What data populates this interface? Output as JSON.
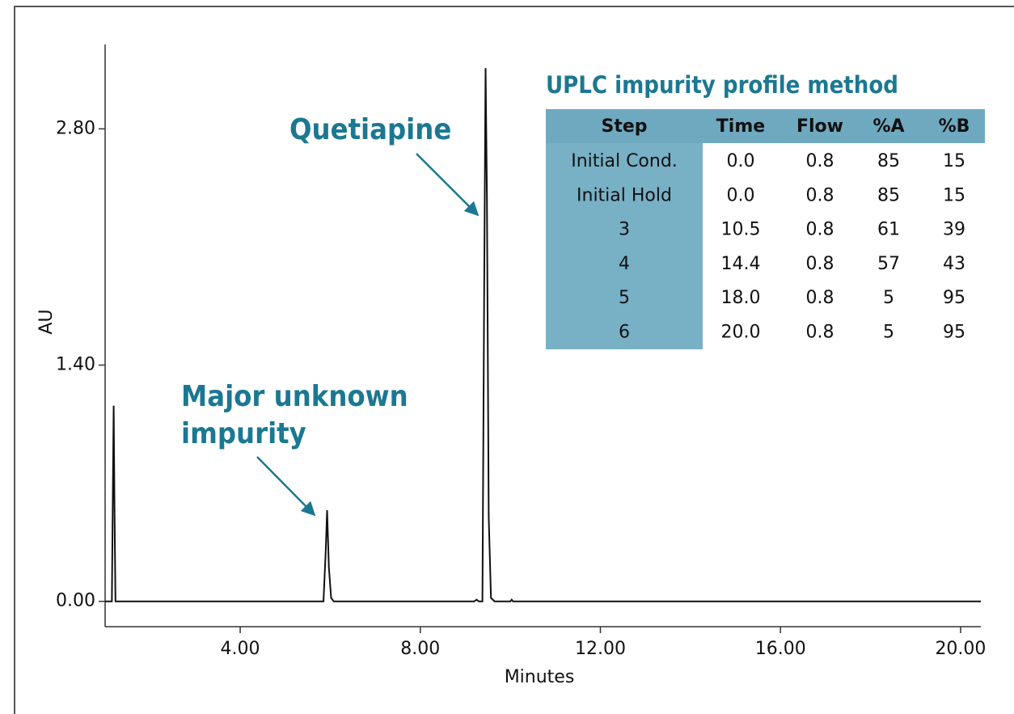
{
  "chart_data": {
    "type": "line",
    "x_label": "Minutes",
    "y_label": "AU",
    "color": "#111111",
    "x": [
      1.0,
      1.15,
      1.17,
      1.19,
      1.21,
      1.23,
      1.3,
      5.85,
      5.9,
      5.93,
      5.97,
      6.02,
      6.08,
      9.2,
      9.25,
      9.3,
      9.38,
      9.42,
      9.45,
      9.48,
      9.52,
      9.57,
      9.65,
      10.0,
      10.03,
      10.06,
      20.45
    ],
    "values": [
      0,
      0,
      0.6,
      1.16,
      0.5,
      0,
      0,
      0,
      0.3,
      0.54,
      0.2,
      0.02,
      0,
      0,
      0.01,
      0,
      0,
      1.9,
      3.16,
      2.4,
      0.5,
      0.02,
      0,
      0,
      0.01,
      0,
      0
    ],
    "xlim": [
      1.0,
      20.45
    ],
    "ylim": [
      -0.15,
      3.3
    ],
    "xticks": [
      {
        "value": 4,
        "label": "4.00"
      },
      {
        "value": 8,
        "label": "8.00"
      },
      {
        "value": 12,
        "label": "12.00"
      },
      {
        "value": 16,
        "label": "16.00"
      },
      {
        "value": 20,
        "label": "20.00"
      }
    ],
    "yticks": [
      {
        "value": 0,
        "label": "0.00"
      },
      {
        "value": 1.4,
        "label": "1.40"
      },
      {
        "value": 2.8,
        "label": "2.80"
      }
    ],
    "annotations": [
      {
        "text": "Quetiapine"
      },
      {
        "lines": [
          "Major unknown",
          "impurity"
        ]
      }
    ]
  },
  "table": {
    "title": "UPLC impurity profile method",
    "header": [
      "Step",
      "Time",
      "Flow",
      "%A",
      "%B"
    ],
    "rows": [
      [
        "Initial Cond.",
        "0.0",
        "0.8",
        "85",
        "15"
      ],
      [
        "Initial Hold",
        "0.0",
        "0.8",
        "85",
        "15"
      ],
      [
        "3",
        "10.5",
        "0.8",
        "61",
        "39"
      ],
      [
        "4",
        "14.4",
        "0.8",
        "57",
        "43"
      ],
      [
        "5",
        "18.0",
        "0.8",
        "5",
        "95"
      ],
      [
        "6",
        "20.0",
        "0.8",
        "5",
        "95"
      ]
    ]
  }
}
